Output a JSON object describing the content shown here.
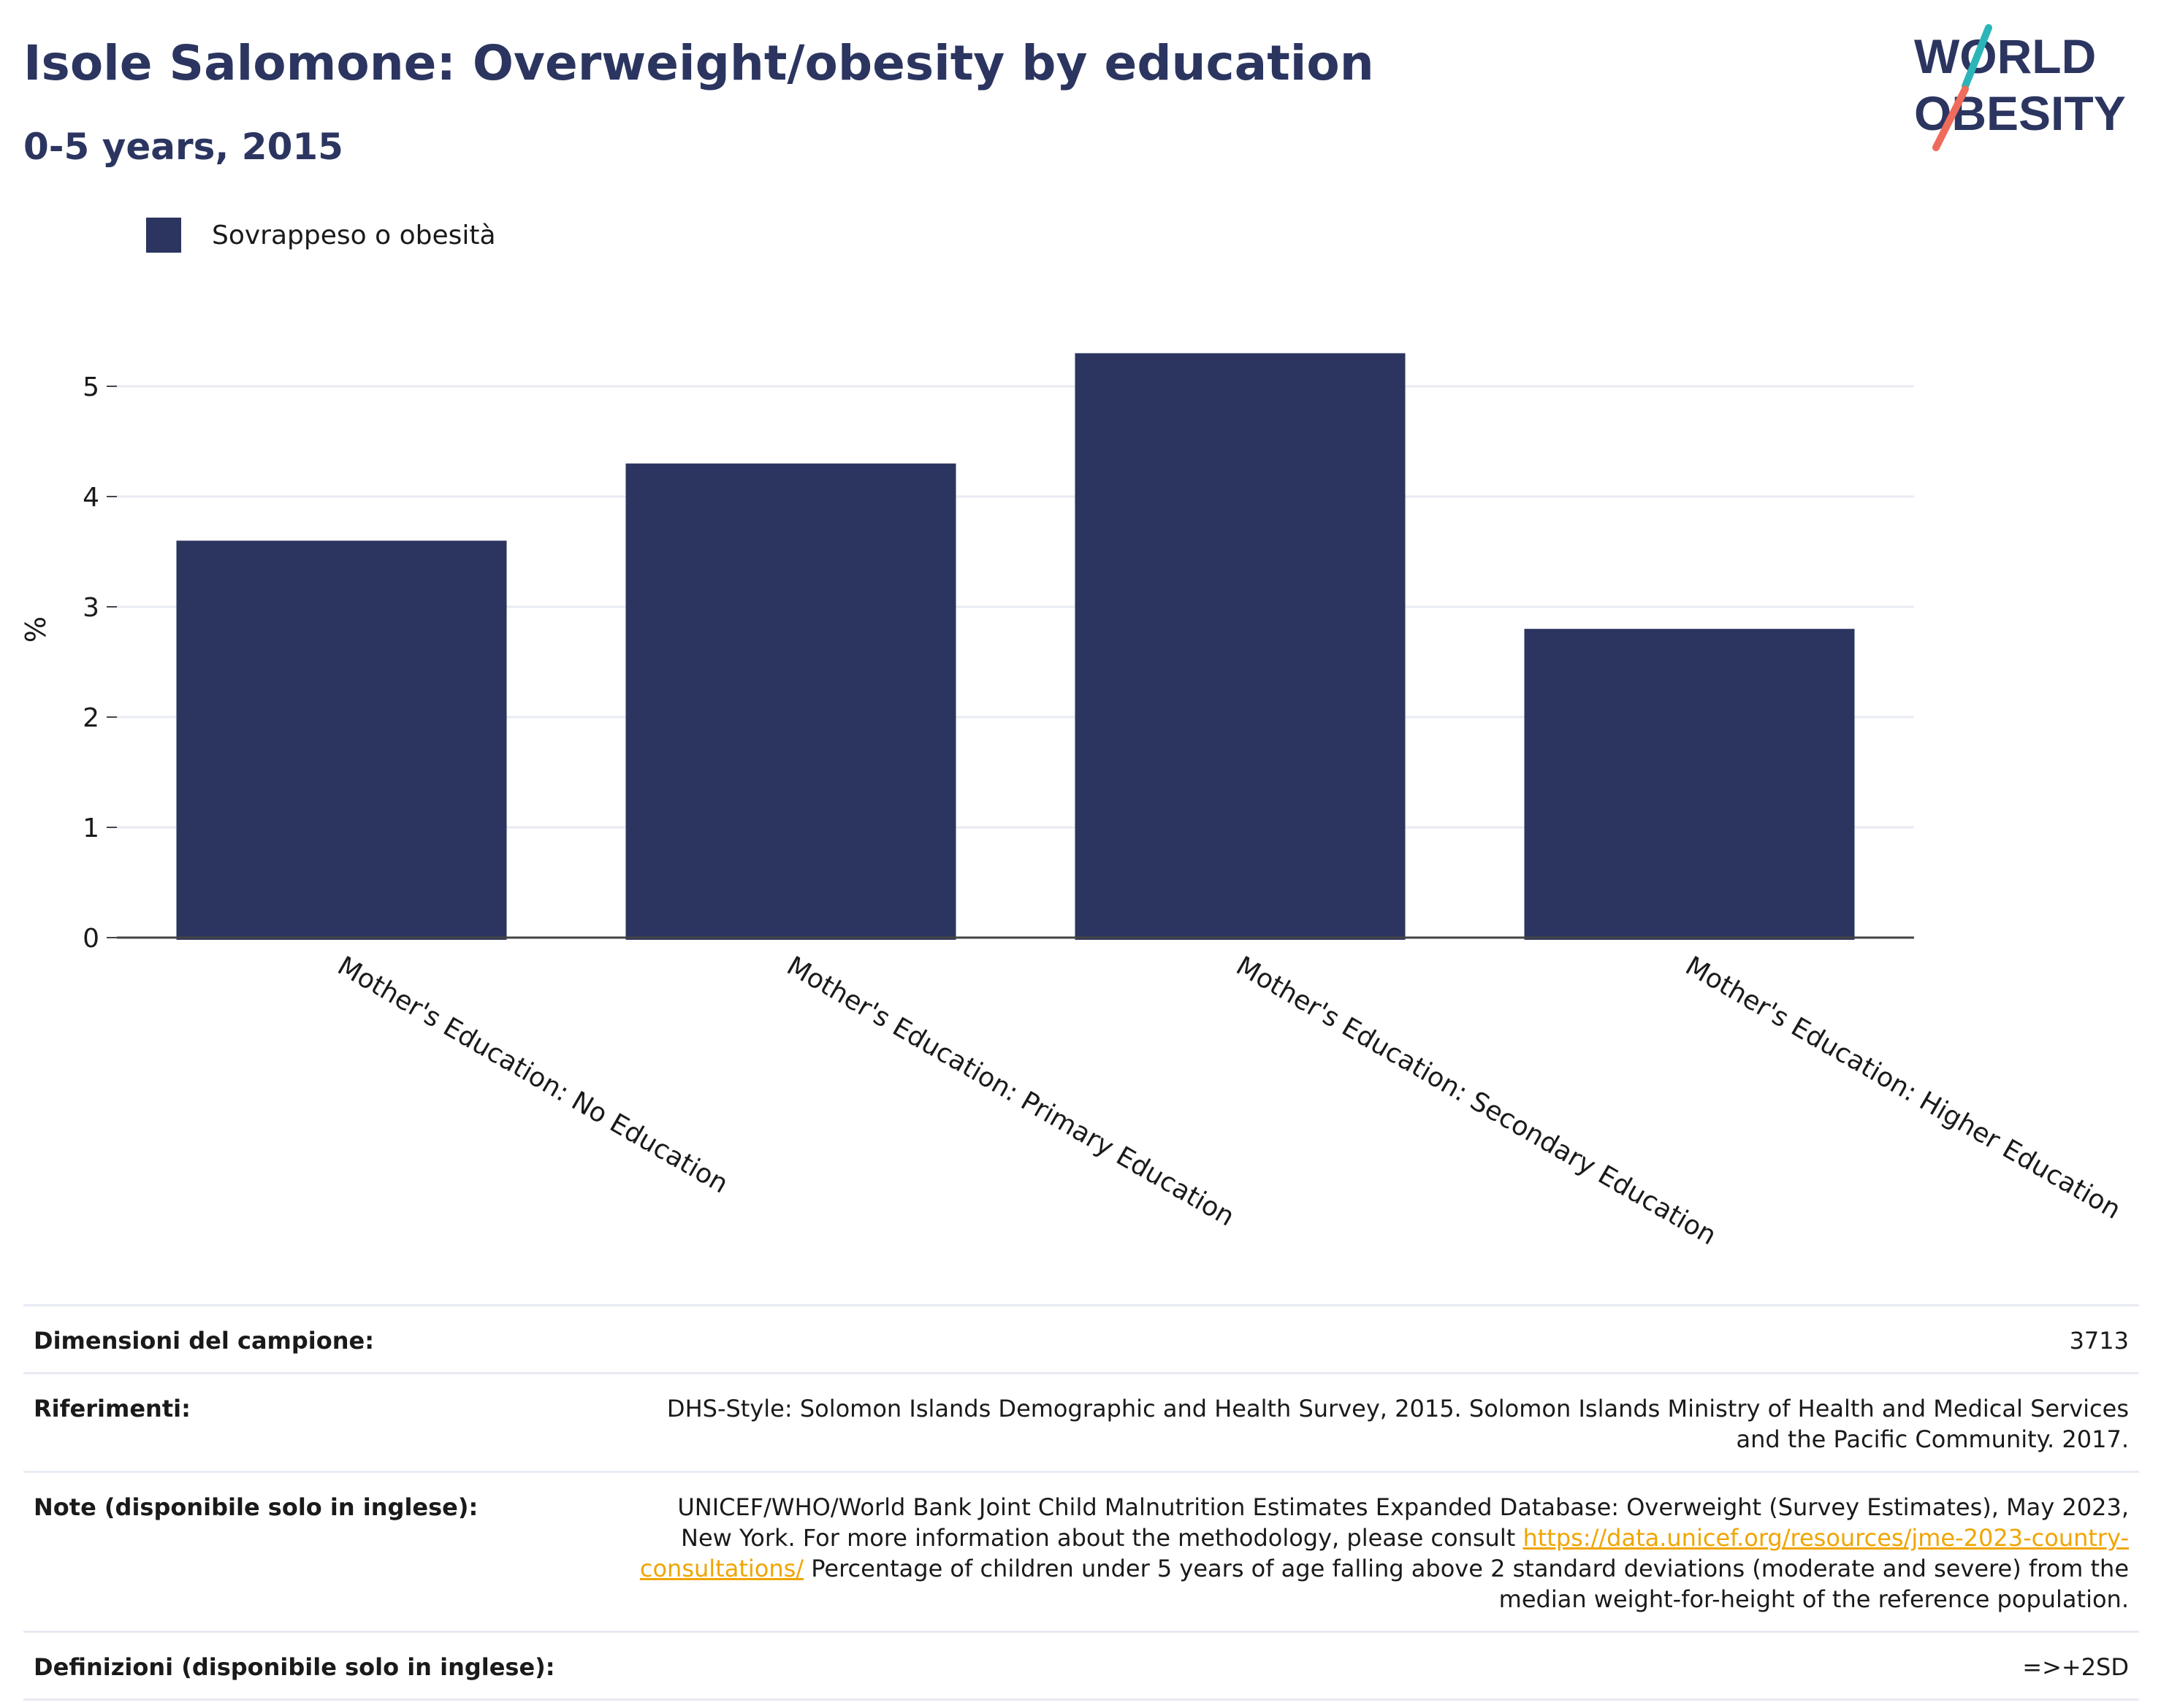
{
  "header": {
    "title": "Isole Salomone: Overweight/obesity by education",
    "subtitle": "0-5 years, 2015"
  },
  "logo": {
    "line1": "WORLD",
    "line2": "OBESITY",
    "accent_teal": "#2bb5b8",
    "accent_coral": "#ef6b5b"
  },
  "chart_data": {
    "type": "bar",
    "title": "Isole Salomone: Overweight/obesity by education",
    "subtitle": "0-5 years, 2015",
    "xlabel": "",
    "ylabel": "%",
    "categories": [
      "Mother's Education: No Education",
      "Mother's Education: Primary Education",
      "Mother's Education: Secondary Education",
      "Mother's Education: Higher Education"
    ],
    "series": [
      {
        "name": "Sovrappeso o obesità",
        "values": [
          3.6,
          4.3,
          5.3,
          2.8
        ],
        "color": "#2b3560"
      }
    ],
    "ylim": [
      0,
      5.5
    ],
    "yticks": [
      0,
      1,
      2,
      3,
      4,
      5
    ],
    "grid": true,
    "legend_position": "top-left"
  },
  "info": {
    "sample_label": "Dimensioni del campione:",
    "sample_value": "3713",
    "references_label": "Riferimenti:",
    "references_value": "DHS-Style: Solomon Islands Demographic and Health Survey, 2015. Solomon Islands Ministry of Health and Medical Services and the Pacific Community. 2017.",
    "notes_label": "Note (disponibile solo in inglese):",
    "notes_value_before": "UNICEF/WHO/World Bank Joint Child Malnutrition Estimates Expanded Database: Overweight (Survey Estimates), May 2023, New York. For more information about the methodology, please consult ",
    "notes_link": "https://data.unicef.org/resources/jme-2023-country-consultations/",
    "notes_value_after": " Percentage of children under 5 years of age falling above 2 standard deviations (moderate and severe) from the median weight-for-height of the reference population.",
    "definitions_label": "Definizioni (disponibile solo in inglese):",
    "definitions_value": "=>+2SD"
  }
}
